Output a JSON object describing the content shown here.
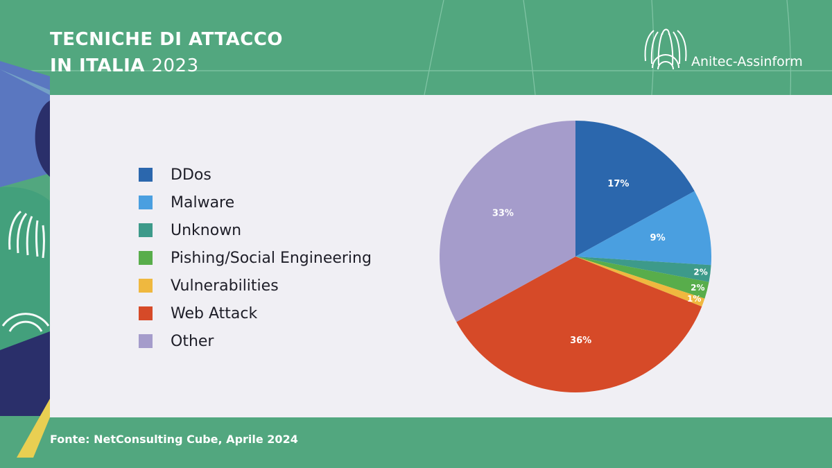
{
  "header": {
    "title_line1": "TECNICHE DI ATTACCO",
    "title_line2": "IN ITALIA",
    "title_year": "2023",
    "brand": "Anitec-Assinform"
  },
  "footer": {
    "source": "Fonte: NetConsulting Cube, Aprile 2024"
  },
  "colors": {
    "background": "#52a77f",
    "panel": "#f0eff4"
  },
  "icons": {
    "brand_logo": "eagle-emblem-icon",
    "decoration": "eagle-emblem-icon"
  },
  "chart_data": {
    "type": "pie",
    "title": "",
    "legend_position": "left",
    "start_angle": "12 o'clock, clockwise",
    "slices": [
      {
        "label": "DDos",
        "value": 17,
        "display": "17%",
        "color": "#2b67ad"
      },
      {
        "label": "Malware",
        "value": 9,
        "display": "9%",
        "color": "#4a9fe0"
      },
      {
        "label": "Unknown",
        "value": 2,
        "display": "2%",
        "color": "#3d9a8a"
      },
      {
        "label": "Pishing/Social Engineering",
        "value": 2,
        "display": "2%",
        "color": "#58ad4b"
      },
      {
        "label": "Vulnerabilities",
        "value": 1,
        "display": "1%",
        "color": "#efb83f"
      },
      {
        "label": "Web Attack",
        "value": 36,
        "display": "36%",
        "color": "#d64a28"
      },
      {
        "label": "Other",
        "value": 33,
        "display": "33%",
        "color": "#a59ccb"
      }
    ]
  }
}
